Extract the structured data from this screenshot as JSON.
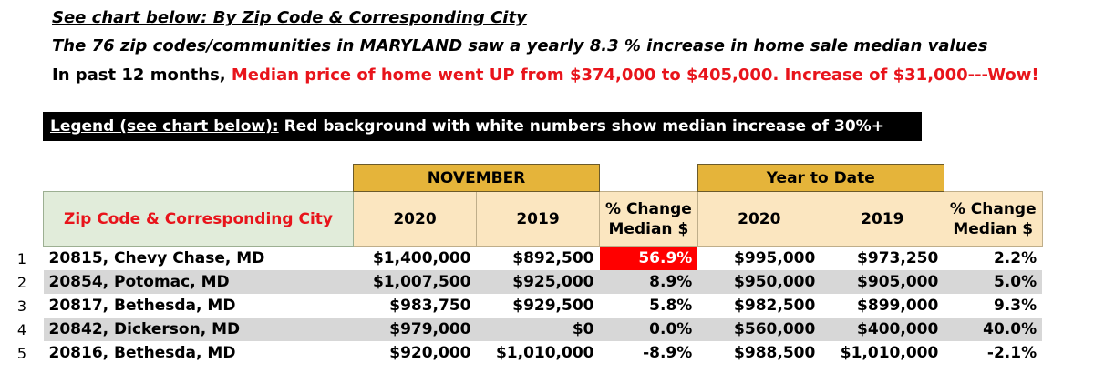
{
  "intro": {
    "line1": "See chart below:  By Zip Code & Corresponding City",
    "line2": "The 76 zip codes/communities in MARYLAND saw a yearly 8.3 % increase in home sale median values",
    "line3_prefix": "In past 12 months, ",
    "line3_highlight": "Median price of home went UP from $374,000 to $405,000.  Increase of $31,000---Wow!"
  },
  "legend": {
    "label": "Legend (see chart below):",
    "text": " Red background with white numbers show median increase of 30%+"
  },
  "table": {
    "group_november": "NOVEMBER",
    "group_ytd": "Year to Date",
    "col_city": "Zip Code & Corresponding City",
    "col_2020": "2020",
    "col_2019": "2019",
    "col_pct_line1": "% Change",
    "col_pct_line2": "Median $",
    "rows": [
      {
        "num": "1",
        "city": "20815, Chevy Chase, MD",
        "nov2020": "$1,400,000",
        "nov2019": "$892,500",
        "nov_pct": "56.9%",
        "ytd2020": "$995,000",
        "ytd2019": "$973,250",
        "ytd_pct": "2.2%"
      },
      {
        "num": "2",
        "city": "20854, Potomac, MD",
        "nov2020": "$1,007,500",
        "nov2019": "$925,000",
        "nov_pct": "8.9%",
        "ytd2020": "$950,000",
        "ytd2019": "$905,000",
        "ytd_pct": "5.0%"
      },
      {
        "num": "3",
        "city": "20817, Bethesda, MD",
        "nov2020": "$983,750",
        "nov2019": "$929,500",
        "nov_pct": "5.8%",
        "ytd2020": "$982,500",
        "ytd2019": "$899,000",
        "ytd_pct": "9.3%"
      },
      {
        "num": "4",
        "city": "20842, Dickerson, MD",
        "nov2020": "$979,000",
        "nov2019": "$0",
        "nov_pct": "0.0%",
        "ytd2020": "$560,000",
        "ytd2019": "$400,000",
        "ytd_pct": "40.0%"
      },
      {
        "num": "5",
        "city": "20816, Bethesda, MD",
        "nov2020": "$920,000",
        "nov2019": "$1,010,000",
        "nov_pct": "-8.9%",
        "ytd2020": "$988,500",
        "ytd2019": "$1,010,000",
        "ytd_pct": "-2.1%"
      }
    ]
  }
}
